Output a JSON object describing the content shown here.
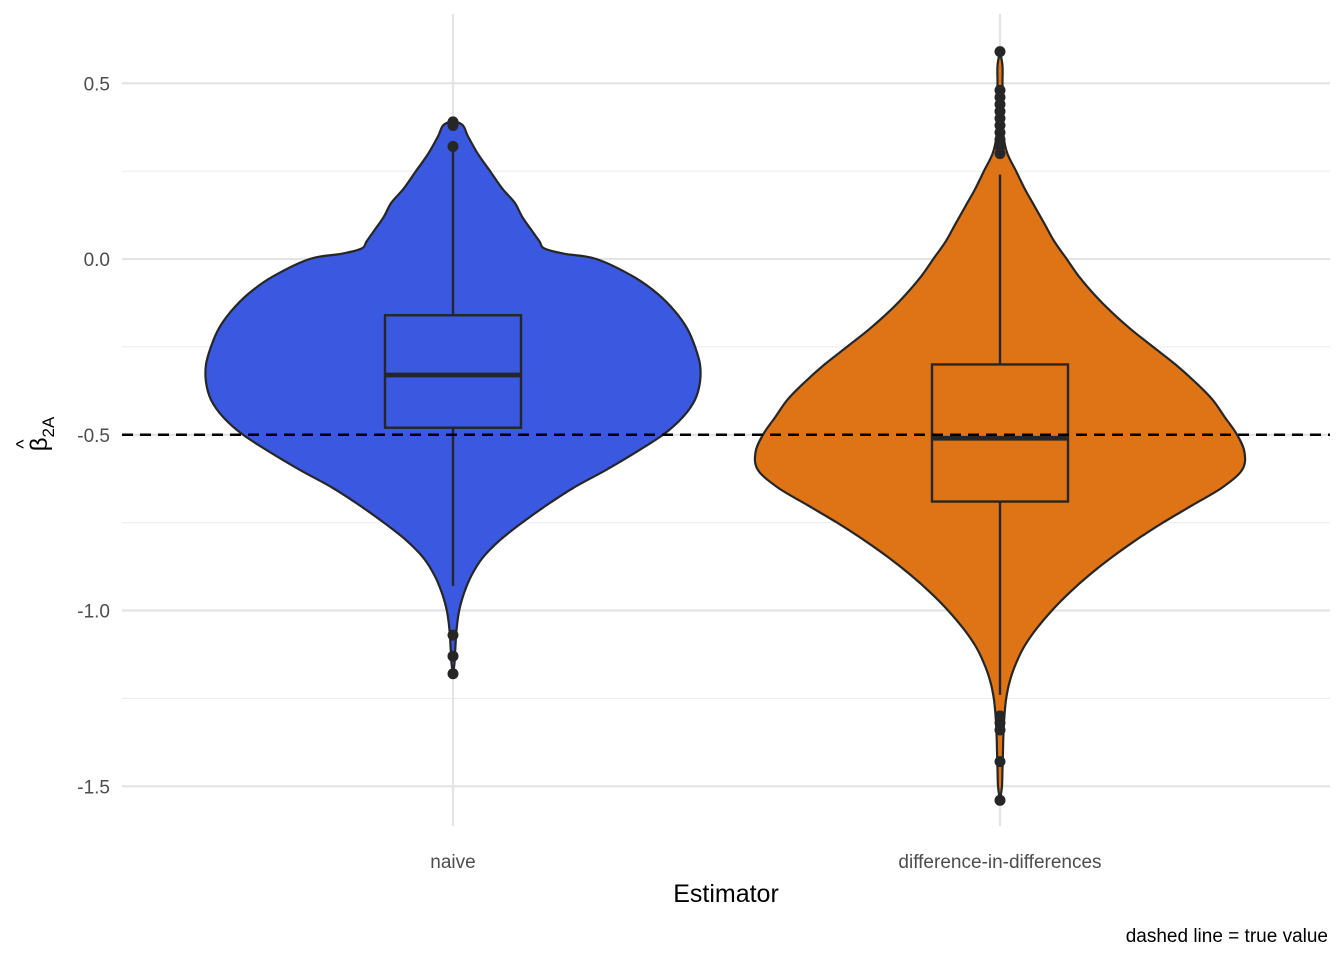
{
  "chart_data": {
    "type": "violin",
    "xlabel": "Estimator",
    "ylabel": "β̂2A",
    "ylabel_parts": {
      "hat_symbol": "β",
      "subscript": "2A"
    },
    "caption": "dashed line = true value",
    "ylim": [
      -1.64,
      0.69
    ],
    "yticks": [
      0.5,
      0.0,
      -0.5,
      -1.0,
      -1.5
    ],
    "ytick_labels": [
      "0.5",
      "0.0",
      "-0.5",
      "-1.0",
      "-1.5"
    ],
    "reference_line": {
      "value": -0.5,
      "style": "dashed",
      "label": "true value"
    },
    "grid": true,
    "categories": [
      "naive",
      "difference-in-differences"
    ],
    "series": [
      {
        "category": "naive",
        "color": "#3b58e0",
        "density_max_halfwidth": 1.0,
        "density": [
          [
            0.395,
            0.0
          ],
          [
            0.38,
            0.04
          ],
          [
            0.35,
            0.06
          ],
          [
            0.3,
            0.1
          ],
          [
            0.25,
            0.15
          ],
          [
            0.2,
            0.2
          ],
          [
            0.16,
            0.25
          ],
          [
            0.12,
            0.28
          ],
          [
            0.08,
            0.32
          ],
          [
            0.05,
            0.35
          ],
          [
            0.03,
            0.37
          ],
          [
            0.015,
            0.45
          ],
          [
            0.0,
            0.58
          ],
          [
            -0.05,
            0.73
          ],
          [
            -0.1,
            0.83
          ],
          [
            -0.15,
            0.9
          ],
          [
            -0.2,
            0.95
          ],
          [
            -0.25,
            0.98
          ],
          [
            -0.3,
            1.0
          ],
          [
            -0.35,
            1.0
          ],
          [
            -0.4,
            0.98
          ],
          [
            -0.45,
            0.93
          ],
          [
            -0.5,
            0.85
          ],
          [
            -0.55,
            0.74
          ],
          [
            -0.6,
            0.62
          ],
          [
            -0.65,
            0.49
          ],
          [
            -0.7,
            0.38
          ],
          [
            -0.75,
            0.28
          ],
          [
            -0.8,
            0.19
          ],
          [
            -0.85,
            0.12
          ],
          [
            -0.9,
            0.075
          ],
          [
            -0.95,
            0.045
          ],
          [
            -1.0,
            0.025
          ],
          [
            -1.05,
            0.015
          ],
          [
            -1.1,
            0.01
          ],
          [
            -1.15,
            0.006
          ],
          [
            -1.18,
            0.0
          ]
        ],
        "box": {
          "lower_whisker": -0.93,
          "q1": -0.48,
          "median": -0.33,
          "q3": -0.16,
          "upper_whisker": 0.32
        },
        "outliers": [
          0.39,
          0.385,
          0.38,
          0.32,
          -1.07,
          -1.13,
          -1.18
        ]
      },
      {
        "category": "difference-in-differences",
        "color": "#de7416",
        "density_max_halfwidth": 1.0,
        "density": [
          [
            0.59,
            0.0
          ],
          [
            0.55,
            0.01
          ],
          [
            0.5,
            0.01
          ],
          [
            0.45,
            0.012
          ],
          [
            0.4,
            0.012
          ],
          [
            0.35,
            0.014
          ],
          [
            0.3,
            0.03
          ],
          [
            0.25,
            0.065
          ],
          [
            0.2,
            0.1
          ],
          [
            0.15,
            0.14
          ],
          [
            0.1,
            0.18
          ],
          [
            0.05,
            0.22
          ],
          [
            0.0,
            0.27
          ],
          [
            -0.05,
            0.32
          ],
          [
            -0.1,
            0.38
          ],
          [
            -0.15,
            0.45
          ],
          [
            -0.2,
            0.53
          ],
          [
            -0.25,
            0.62
          ],
          [
            -0.3,
            0.71
          ],
          [
            -0.35,
            0.79
          ],
          [
            -0.4,
            0.86
          ],
          [
            -0.45,
            0.91
          ],
          [
            -0.5,
            0.96
          ],
          [
            -0.55,
            0.99
          ],
          [
            -0.6,
            0.98
          ],
          [
            -0.65,
            0.9
          ],
          [
            -0.7,
            0.78
          ],
          [
            -0.75,
            0.66
          ],
          [
            -0.8,
            0.55
          ],
          [
            -0.85,
            0.45
          ],
          [
            -0.9,
            0.36
          ],
          [
            -0.95,
            0.28
          ],
          [
            -1.0,
            0.21
          ],
          [
            -1.05,
            0.15
          ],
          [
            -1.1,
            0.1
          ],
          [
            -1.15,
            0.065
          ],
          [
            -1.2,
            0.04
          ],
          [
            -1.25,
            0.025
          ],
          [
            -1.3,
            0.018
          ],
          [
            -1.35,
            0.014
          ],
          [
            -1.4,
            0.012
          ],
          [
            -1.45,
            0.01
          ],
          [
            -1.5,
            0.008
          ],
          [
            -1.54,
            0.0
          ]
        ],
        "box": {
          "lower_whisker": -1.24,
          "q1": -0.69,
          "median": -0.51,
          "q3": -0.3,
          "upper_whisker": 0.24
        },
        "outliers": [
          0.59,
          0.48,
          0.46,
          0.44,
          0.42,
          0.4,
          0.38,
          0.36,
          0.34,
          0.32,
          0.3,
          -1.3,
          -1.32,
          -1.34,
          -1.43,
          -1.54
        ]
      }
    ]
  }
}
